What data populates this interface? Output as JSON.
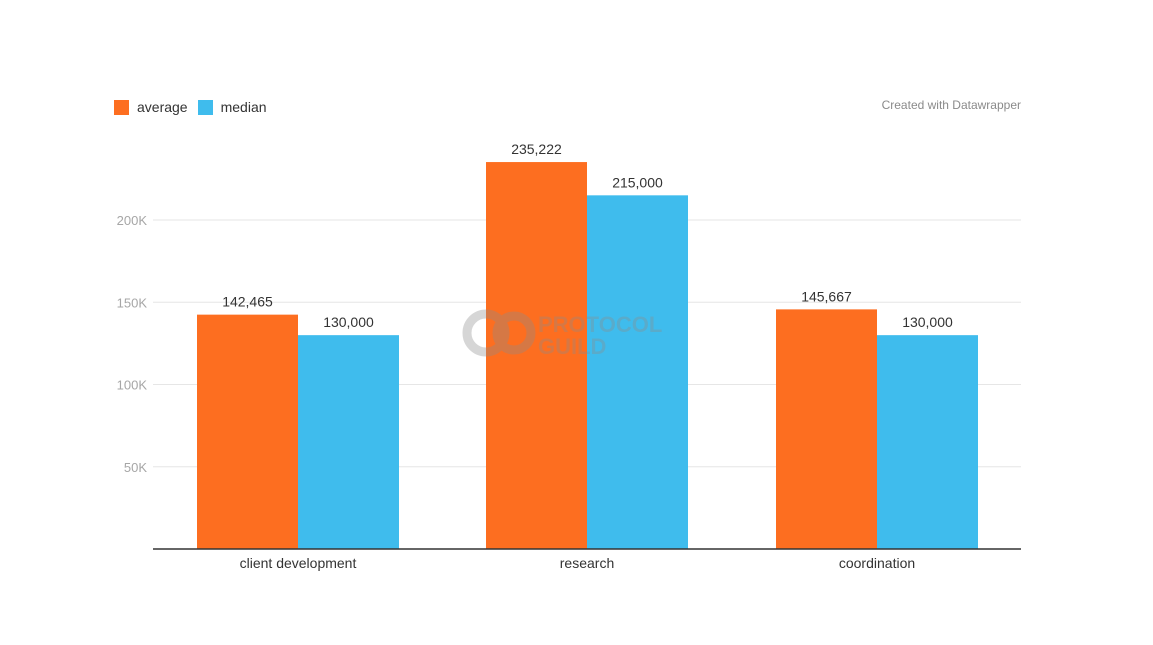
{
  "credit": "Created with Datawrapper",
  "watermark": {
    "line1": "PROTOCOL",
    "line2": "GUILD"
  },
  "chart_data": {
    "type": "bar",
    "categories": [
      "client development",
      "research",
      "coordination"
    ],
    "series": [
      {
        "name": "average",
        "color": "#fd6e20",
        "values": [
          142465,
          235222,
          145667
        ],
        "labels": [
          "142,465",
          "235,222",
          "145,667"
        ]
      },
      {
        "name": "median",
        "color": "#3fbced",
        "values": [
          130000,
          215000,
          130000
        ],
        "labels": [
          "130,000",
          "215,000",
          "130,000"
        ]
      }
    ],
    "yticks": [
      50000,
      100000,
      150000,
      200000
    ],
    "ytick_labels": [
      "50K",
      "100K",
      "150K",
      "200K"
    ],
    "ylim": [
      0,
      250000
    ],
    "grid": true,
    "legend": "top-left"
  }
}
